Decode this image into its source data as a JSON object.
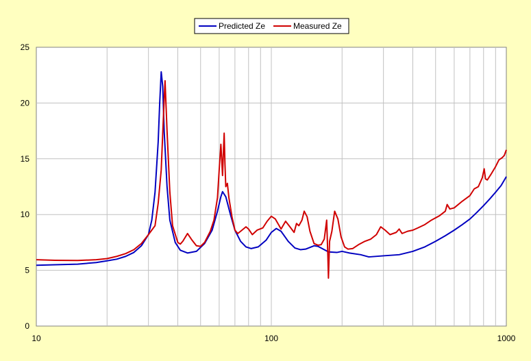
{
  "chart_data": {
    "type": "line",
    "title": "",
    "xlabel": "",
    "ylabel": "",
    "x_scale": "log",
    "xlim": [
      10,
      1000
    ],
    "ylim": [
      0,
      25
    ],
    "x_tick_labels": [
      "10",
      "100",
      "1000"
    ],
    "y_tick_labels": [
      "0",
      "5",
      "10",
      "15",
      "20",
      "25"
    ],
    "grid": true,
    "legend_position": "top-center",
    "colors": {
      "background": "#FFFFC0",
      "plot_area": "#FFFFFF",
      "grid": "#C0C0C0"
    },
    "series": [
      {
        "name": "Predicted Ze",
        "color": "#0000C0",
        "points": [
          [
            10,
            5.45
          ],
          [
            12,
            5.5
          ],
          [
            15,
            5.55
          ],
          [
            18,
            5.7
          ],
          [
            20,
            5.85
          ],
          [
            22,
            6.0
          ],
          [
            24,
            6.25
          ],
          [
            26,
            6.6
          ],
          [
            28,
            7.2
          ],
          [
            30,
            8.2
          ],
          [
            31,
            9.5
          ],
          [
            32,
            12.0
          ],
          [
            33,
            16.5
          ],
          [
            33.5,
            20.0
          ],
          [
            34,
            22.8
          ],
          [
            34.5,
            21.5
          ],
          [
            35,
            17.5
          ],
          [
            36,
            12.5
          ],
          [
            37,
            9.5
          ],
          [
            39,
            7.5
          ],
          [
            41,
            6.8
          ],
          [
            44,
            6.55
          ],
          [
            48,
            6.7
          ],
          [
            52,
            7.4
          ],
          [
            56,
            8.6
          ],
          [
            59,
            10.3
          ],
          [
            61,
            11.6
          ],
          [
            62,
            12.05
          ],
          [
            64,
            11.6
          ],
          [
            67,
            10.0
          ],
          [
            70,
            8.6
          ],
          [
            74,
            7.6
          ],
          [
            78,
            7.1
          ],
          [
            82,
            6.95
          ],
          [
            88,
            7.1
          ],
          [
            95,
            7.7
          ],
          [
            100,
            8.4
          ],
          [
            105,
            8.75
          ],
          [
            110,
            8.5
          ],
          [
            118,
            7.6
          ],
          [
            126,
            7.0
          ],
          [
            133,
            6.85
          ],
          [
            140,
            6.9
          ],
          [
            152,
            7.2
          ],
          [
            158,
            7.15
          ],
          [
            168,
            6.85
          ],
          [
            175,
            6.65
          ],
          [
            190,
            6.6
          ],
          [
            200,
            6.7
          ],
          [
            215,
            6.55
          ],
          [
            240,
            6.4
          ],
          [
            260,
            6.2
          ],
          [
            300,
            6.3
          ],
          [
            350,
            6.4
          ],
          [
            400,
            6.7
          ],
          [
            450,
            7.1
          ],
          [
            500,
            7.6
          ],
          [
            550,
            8.1
          ],
          [
            600,
            8.6
          ],
          [
            650,
            9.1
          ],
          [
            700,
            9.6
          ],
          [
            750,
            10.2
          ],
          [
            800,
            10.8
          ],
          [
            850,
            11.4
          ],
          [
            900,
            12.0
          ],
          [
            950,
            12.6
          ],
          [
            1000,
            13.4
          ]
        ]
      },
      {
        "name": "Measured Ze",
        "color": "#D00000",
        "points": [
          [
            10,
            5.95
          ],
          [
            12,
            5.9
          ],
          [
            15,
            5.88
          ],
          [
            18,
            5.95
          ],
          [
            20,
            6.05
          ],
          [
            22,
            6.25
          ],
          [
            24,
            6.5
          ],
          [
            26,
            6.85
          ],
          [
            28,
            7.4
          ],
          [
            30,
            8.2
          ],
          [
            32,
            9.0
          ],
          [
            33,
            11.0
          ],
          [
            34,
            14.0
          ],
          [
            34.7,
            18.5
          ],
          [
            35.3,
            22.0
          ],
          [
            36,
            17.5
          ],
          [
            37,
            12.0
          ],
          [
            38,
            9.0
          ],
          [
            40,
            7.5
          ],
          [
            41,
            7.35
          ],
          [
            42,
            7.6
          ],
          [
            44,
            8.3
          ],
          [
            46,
            7.7
          ],
          [
            48,
            7.2
          ],
          [
            50,
            7.15
          ],
          [
            52,
            7.5
          ],
          [
            55,
            8.5
          ],
          [
            57,
            9.5
          ],
          [
            59,
            11.5
          ],
          [
            60,
            14.0
          ],
          [
            61,
            16.3
          ],
          [
            61.5,
            15.0
          ],
          [
            62,
            13.5
          ],
          [
            62.5,
            15.5
          ],
          [
            63,
            17.3
          ],
          [
            63.5,
            14.5
          ],
          [
            64,
            12.5
          ],
          [
            65,
            12.8
          ],
          [
            66,
            11.5
          ],
          [
            68,
            9.8
          ],
          [
            70,
            8.6
          ],
          [
            72,
            8.3
          ],
          [
            75,
            8.6
          ],
          [
            78,
            8.9
          ],
          [
            80,
            8.7
          ],
          [
            83,
            8.2
          ],
          [
            87,
            8.6
          ],
          [
            92,
            8.8
          ],
          [
            96,
            9.4
          ],
          [
            100,
            9.85
          ],
          [
            104,
            9.6
          ],
          [
            108,
            9.0
          ],
          [
            110,
            8.7
          ],
          [
            115,
            9.4
          ],
          [
            120,
            8.9
          ],
          [
            125,
            8.4
          ],
          [
            128,
            9.2
          ],
          [
            131,
            9.0
          ],
          [
            135,
            9.5
          ],
          [
            138,
            10.3
          ],
          [
            142,
            9.8
          ],
          [
            146,
            8.5
          ],
          [
            152,
            7.4
          ],
          [
            158,
            7.25
          ],
          [
            163,
            7.3
          ],
          [
            168,
            7.8
          ],
          [
            172,
            9.5
          ],
          [
            174,
            6.3
          ],
          [
            175,
            4.3
          ],
          [
            177,
            7.6
          ],
          [
            181,
            8.5
          ],
          [
            186,
            10.3
          ],
          [
            192,
            9.6
          ],
          [
            198,
            8.0
          ],
          [
            205,
            7.1
          ],
          [
            212,
            6.9
          ],
          [
            222,
            6.95
          ],
          [
            235,
            7.3
          ],
          [
            250,
            7.6
          ],
          [
            265,
            7.8
          ],
          [
            280,
            8.2
          ],
          [
            292,
            8.9
          ],
          [
            305,
            8.6
          ],
          [
            320,
            8.2
          ],
          [
            340,
            8.4
          ],
          [
            350,
            8.7
          ],
          [
            360,
            8.3
          ],
          [
            380,
            8.5
          ],
          [
            400,
            8.6
          ],
          [
            420,
            8.8
          ],
          [
            450,
            9.1
          ],
          [
            480,
            9.5
          ],
          [
            520,
            9.9
          ],
          [
            550,
            10.3
          ],
          [
            560,
            10.9
          ],
          [
            575,
            10.5
          ],
          [
            600,
            10.6
          ],
          [
            650,
            11.2
          ],
          [
            700,
            11.7
          ],
          [
            730,
            12.3
          ],
          [
            760,
            12.5
          ],
          [
            790,
            13.3
          ],
          [
            805,
            14.1
          ],
          [
            815,
            13.2
          ],
          [
            830,
            13.1
          ],
          [
            860,
            13.6
          ],
          [
            900,
            14.3
          ],
          [
            930,
            14.9
          ],
          [
            960,
            15.1
          ],
          [
            980,
            15.3
          ],
          [
            1000,
            15.8
          ]
        ]
      }
    ]
  }
}
